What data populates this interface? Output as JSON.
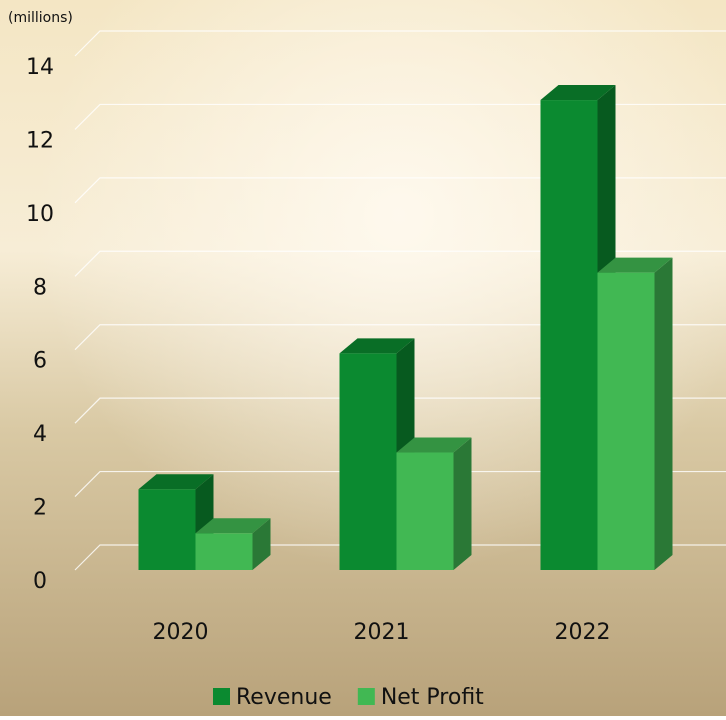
{
  "chart_data": {
    "type": "bar3d",
    "y_label": "(millions)",
    "categories": [
      "2020",
      "2021",
      "2022"
    ],
    "series": [
      {
        "name": "Revenue",
        "color": "#0b8a30",
        "values": [
          2.2,
          5.9,
          12.8
        ]
      },
      {
        "name": "Net Profit",
        "color": "#41b853",
        "values": [
          1.0,
          3.2,
          8.1
        ]
      }
    ],
    "ylim": [
      0,
      14
    ],
    "yticks": [
      0,
      2,
      4,
      6,
      8,
      10,
      12,
      14
    ],
    "grid": true,
    "legend": "bottom"
  }
}
